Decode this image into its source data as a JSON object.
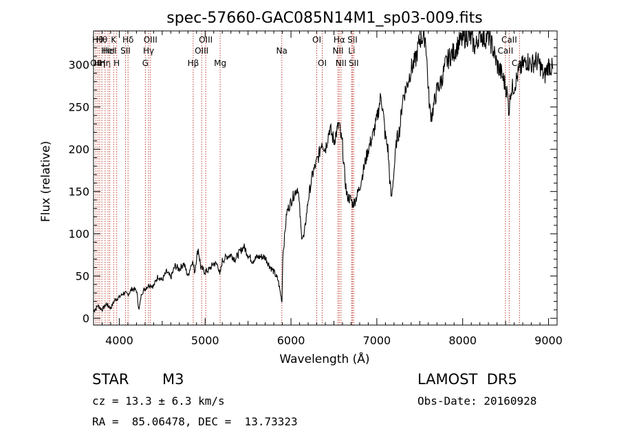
{
  "chart_data": {
    "type": "line",
    "title": "spec-57660-GAC085N14M1_sp03-009.fits",
    "xlabel": "Wavelength (Å)",
    "ylabel": "Flux (relative)",
    "xlim": [
      3700,
      9100
    ],
    "ylim": [
      -8,
      340
    ],
    "xticks": [
      4000,
      5000,
      6000,
      7000,
      8000,
      9000
    ],
    "yticks": [
      0,
      50,
      100,
      150,
      200,
      250,
      300
    ],
    "grid": false,
    "series": [
      {
        "x": [
          3700,
          3750,
          3800,
          3850,
          3900,
          3950,
          4000,
          4050,
          4100,
          4150,
          4200,
          4230,
          4260,
          4300,
          4350,
          4400,
          4450,
          4500,
          4550,
          4600,
          4650,
          4700,
          4750,
          4800,
          4850,
          4880,
          4900,
          4920,
          4950,
          5000,
          5050,
          5100,
          5150,
          5170,
          5200,
          5250,
          5300,
          5350,
          5400,
          5450,
          5500,
          5550,
          5600,
          5650,
          5700,
          5750,
          5800,
          5850,
          5880,
          5895,
          5905,
          5920,
          5950,
          6000,
          6050,
          6080,
          6100,
          6120,
          6150,
          6200,
          6250,
          6300,
          6330,
          6360,
          6400,
          6450,
          6500,
          6530,
          6560,
          6580,
          6600,
          6620,
          6650,
          6700,
          6720,
          6750,
          6800,
          6850,
          6900,
          6950,
          7000,
          7050,
          7100,
          7130,
          7150,
          7170,
          7200,
          7230,
          7270,
          7300,
          7350,
          7400,
          7450,
          7500,
          7550,
          7570,
          7590,
          7600,
          7620,
          7640,
          7660,
          7700,
          7750,
          7800,
          7850,
          7900,
          7950,
          8000,
          8050,
          8100,
          8150,
          8200,
          8250,
          8300,
          8350,
          8400,
          8450,
          8500,
          8520,
          8540,
          8560,
          8600,
          8650,
          8700,
          8750,
          8800,
          8850,
          8900,
          8950,
          9000,
          9050
        ],
        "y": [
          8,
          15,
          10,
          17,
          12,
          22,
          25,
          30,
          28,
          35,
          33,
          10,
          30,
          35,
          40,
          38,
          50,
          45,
          55,
          48,
          62,
          58,
          65,
          50,
          68,
          55,
          72,
          82,
          60,
          55,
          58,
          65,
          63,
          50,
          68,
          73,
          75,
          70,
          78,
          85,
          75,
          68,
          72,
          73,
          72,
          62,
          55,
          45,
          28,
          20,
          75,
          90,
          125,
          138,
          150,
          155,
          130,
          100,
          95,
          140,
          170,
          185,
          195,
          210,
          200,
          225,
          210,
          220,
          230,
          215,
          205,
          175,
          145,
          140,
          135,
          140,
          155,
          178,
          200,
          215,
          235,
          265,
          215,
          200,
          165,
          140,
          175,
          210,
          225,
          260,
          275,
          295,
          305,
          330,
          335,
          330,
          290,
          270,
          245,
          240,
          250,
          270,
          280,
          300,
          310,
          315,
          325,
          330,
          335,
          330,
          320,
          340,
          330,
          335,
          320,
          300,
          290,
          275,
          265,
          245,
          270,
          275,
          290,
          300,
          305,
          300,
          305,
          300,
          285,
          300,
          295
        ]
      }
    ],
    "lines": [
      {
        "wl": 3727,
        "label": "OII",
        "row": 3
      },
      {
        "wl": 3750,
        "label": "Hθ",
        "row": 1
      },
      {
        "wl": 3771,
        "label": "Hη",
        "row": 3
      },
      {
        "wl": 3797,
        "label": "Hθ",
        "row": 1
      },
      {
        "wl": 3835,
        "label": "Hη",
        "row": 3
      },
      {
        "wl": 3869,
        "label": "HeI",
        "row": 2
      },
      {
        "wl": 3889,
        "label": "HeI",
        "row": 2
      },
      {
        "wl": 3934,
        "label": "K",
        "row": 1
      },
      {
        "wl": 3970,
        "label": "H",
        "row": 3
      },
      {
        "wl": 4072,
        "label": "SII",
        "row": 2
      },
      {
        "wl": 4102,
        "label": "Hδ",
        "row": 1
      },
      {
        "wl": 4304,
        "label": "G",
        "row": 3
      },
      {
        "wl": 4341,
        "label": "Hγ",
        "row": 2
      },
      {
        "wl": 4363,
        "label": "OIII",
        "row": 1
      },
      {
        "wl": 4861,
        "label": "Hβ",
        "row": 3
      },
      {
        "wl": 4959,
        "label": "OIII",
        "row": 2
      },
      {
        "wl": 5007,
        "label": "OIII",
        "row": 1
      },
      {
        "wl": 5175,
        "label": "Mg",
        "row": 3
      },
      {
        "wl": 5893,
        "label": "Na",
        "row": 2
      },
      {
        "wl": 6300,
        "label": "OI",
        "row": 1
      },
      {
        "wl": 6364,
        "label": "OI",
        "row": 3
      },
      {
        "wl": 6548,
        "label": "NII",
        "row": 2
      },
      {
        "wl": 6563,
        "label": "Hα",
        "row": 1
      },
      {
        "wl": 6583,
        "label": "NII",
        "row": 3
      },
      {
        "wl": 6707,
        "label": "Li",
        "row": 2
      },
      {
        "wl": 6716,
        "label": "SII",
        "row": 1
      },
      {
        "wl": 6731,
        "label": "SII",
        "row": 3
      },
      {
        "wl": 8498,
        "label": "CaII",
        "row": 2
      },
      {
        "wl": 8542,
        "label": "CaII",
        "row": 1
      },
      {
        "wl": 8662,
        "label": "CaII",
        "row": 3
      }
    ]
  },
  "info": {
    "object_class": "STAR",
    "subclass": "M3",
    "survey": "LAMOST  DR5",
    "cz": "cz = 13.3 ± 6.3 km/s",
    "obs_date": "Obs-Date: 20160928",
    "radec": "RA =  85.06478, DEC =  13.73323"
  }
}
